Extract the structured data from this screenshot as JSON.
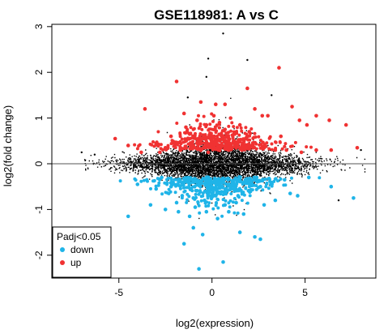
{
  "chart_data": {
    "type": "scatter",
    "title": "GSE118981: A vs C",
    "xlabel": "log2(expression)",
    "ylabel": "log2(fold change)",
    "xlim": [
      -8.6,
      8.8
    ],
    "ylim": [
      -2.5,
      3.05
    ],
    "x_ticks": [
      -5,
      0,
      5
    ],
    "y_ticks": [
      -2,
      -1,
      0,
      1,
      2,
      3
    ],
    "reference_line_y": 0,
    "legend": {
      "title": "Padj<0.05",
      "position": "bottom-left",
      "entries": [
        {
          "label": "down",
          "color": "#1fb4e8"
        },
        {
          "label": "up",
          "color": "#f03232"
        }
      ]
    },
    "colors": {
      "background_points": "#000000",
      "down": "#1fb4e8",
      "up": "#f03232"
    },
    "series": [
      {
        "name": "up",
        "color": "#f03232",
        "points": [
          [
            3.6,
            2.1
          ],
          [
            1.9,
            1.65
          ],
          [
            -1.9,
            1.8
          ],
          [
            -3.6,
            1.2
          ],
          [
            -1.5,
            1.1
          ],
          [
            -0.6,
            1.35
          ],
          [
            0.2,
            1.3
          ],
          [
            0.7,
            1.3
          ],
          [
            2.3,
            1.2
          ],
          [
            2.7,
            1.05
          ],
          [
            3.0,
            1.05
          ],
          [
            4.3,
            1.25
          ],
          [
            4.7,
            0.95
          ],
          [
            5.1,
            0.85
          ],
          [
            5.6,
            1.05
          ],
          [
            6.3,
            0.95
          ],
          [
            7.2,
            0.85
          ],
          [
            7.8,
            0.35
          ],
          [
            -5.2,
            0.55
          ],
          [
            -4.5,
            0.4
          ],
          [
            -3.0,
            0.45
          ],
          [
            -2.2,
            0.6
          ],
          [
            -2.5,
            0.35
          ],
          [
            -1.2,
            0.65
          ],
          [
            -0.8,
            0.95
          ],
          [
            -0.3,
            0.85
          ],
          [
            0.4,
            0.9
          ],
          [
            1.0,
            1.0
          ],
          [
            1.5,
            0.85
          ],
          [
            0.0,
            0.6
          ],
          [
            -0.5,
            0.55
          ],
          [
            0.6,
            0.55
          ],
          [
            1.2,
            0.5
          ],
          [
            1.8,
            0.55
          ],
          [
            -1.0,
            0.4
          ],
          [
            -1.7,
            0.3
          ],
          [
            0.3,
            0.35
          ],
          [
            0.9,
            0.3
          ],
          [
            1.6,
            0.3
          ],
          [
            2.2,
            0.4
          ],
          [
            2.8,
            0.35
          ],
          [
            3.4,
            0.3
          ],
          [
            4.0,
            0.3
          ],
          [
            4.8,
            0.25
          ],
          [
            5.6,
            0.3
          ],
          [
            6.4,
            0.3
          ],
          [
            -0.2,
            0.25
          ],
          [
            0.7,
            0.75
          ],
          [
            -1.4,
            0.8
          ],
          [
            2.0,
            0.7
          ],
          [
            3.7,
            0.6
          ],
          [
            -3.8,
            0.25
          ],
          [
            -2.8,
            0.25
          ],
          [
            0.1,
            1.05
          ]
        ]
      },
      {
        "name": "down",
        "color": "#1fb4e8",
        "points": [
          [
            -0.7,
            -2.3
          ],
          [
            0.6,
            -2.15
          ],
          [
            -1.5,
            -1.75
          ],
          [
            -0.5,
            -1.55
          ],
          [
            -1.0,
            -1.4
          ],
          [
            1.5,
            -1.5
          ],
          [
            2.6,
            -1.65
          ],
          [
            2.3,
            -1.6
          ],
          [
            -4.5,
            -1.15
          ],
          [
            -3.3,
            -0.9
          ],
          [
            -2.5,
            -1.0
          ],
          [
            -1.8,
            -1.05
          ],
          [
            -1.2,
            -1.15
          ],
          [
            -0.3,
            -1.05
          ],
          [
            0.3,
            -1.2
          ],
          [
            0.9,
            -1.05
          ],
          [
            1.7,
            -1.1
          ],
          [
            2.8,
            -0.9
          ],
          [
            3.4,
            -0.8
          ],
          [
            4.2,
            -0.65
          ],
          [
            4.6,
            -0.7
          ],
          [
            6.4,
            -0.5
          ],
          [
            7.6,
            -0.75
          ],
          [
            -4.0,
            -0.45
          ],
          [
            -3.0,
            -0.55
          ],
          [
            -2.2,
            -0.5
          ],
          [
            -1.6,
            -0.7
          ],
          [
            -1.0,
            -0.75
          ],
          [
            -0.4,
            -0.8
          ],
          [
            0.2,
            -0.7
          ],
          [
            0.8,
            -0.6
          ],
          [
            1.4,
            -0.7
          ],
          [
            2.0,
            -0.6
          ],
          [
            2.6,
            -0.5
          ],
          [
            3.2,
            -0.45
          ],
          [
            -1.3,
            -0.4
          ],
          [
            -0.7,
            -0.45
          ],
          [
            0.0,
            -0.4
          ],
          [
            0.5,
            -0.35
          ],
          [
            1.1,
            -0.4
          ],
          [
            1.8,
            -0.35
          ],
          [
            2.4,
            -0.3
          ],
          [
            3.9,
            -0.35
          ],
          [
            5.2,
            -0.3
          ],
          [
            -2.7,
            -0.3
          ],
          [
            -0.2,
            -0.55
          ],
          [
            0.7,
            -0.9
          ],
          [
            -0.9,
            -0.95
          ],
          [
            1.3,
            -0.85
          ],
          [
            -1.9,
            -0.85
          ]
        ]
      }
    ]
  }
}
